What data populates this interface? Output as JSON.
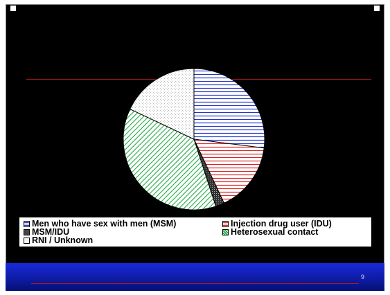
{
  "slide": {
    "title_lines": [
      "",
      "",
      ""
    ],
    "page_number": "9",
    "footer_text": ""
  },
  "chart_data": {
    "type": "pie",
    "title": "",
    "slices": [
      {
        "label": "Men who have sex with men (MSM)",
        "value": 27,
        "shown_value": "",
        "color": "#2233cc",
        "pattern": "horizontal-hatch"
      },
      {
        "label": "Injection drug user (IDU)",
        "value": 16,
        "shown_value": "",
        "color": "#dd2222",
        "pattern": "horizontal-hatch"
      },
      {
        "label": "MSM/IDU",
        "value": 2,
        "shown_value": "",
        "color": "#555555",
        "pattern": "dense-dots"
      },
      {
        "label": "Heterosexual contact",
        "value": 37,
        "shown_value": "",
        "color": "#22aa44",
        "pattern": "diagonal-hatch"
      },
      {
        "label": "RNI / Unknown",
        "value": 18,
        "shown_value": "",
        "color": "#b8b8b8",
        "pattern": "light-dots"
      }
    ],
    "legend": {
      "placement": "bottom"
    }
  }
}
